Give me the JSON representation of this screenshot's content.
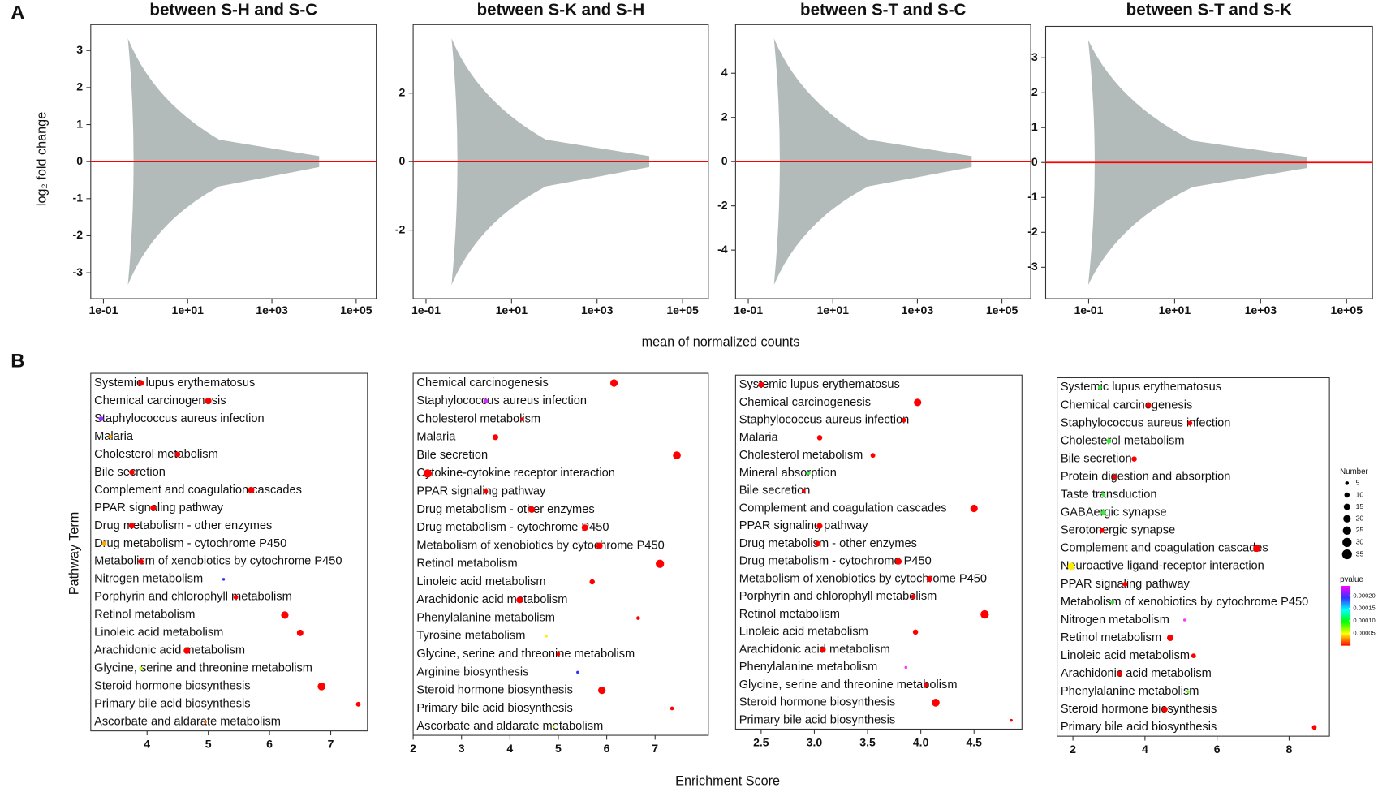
{
  "panel_labels": [
    "A",
    "B"
  ],
  "ma": {
    "xlabel": "mean of normalized counts",
    "ylabel": "log₂ fold change",
    "hline": 0,
    "xscale": "log",
    "panels": [
      {
        "title": "between S-H and S-C",
        "xlim": [
          0.05,
          300000
        ],
        "ylim": [
          -3.7,
          3.7
        ],
        "yticks": [
          -3,
          -2,
          -1,
          0,
          1,
          2,
          3
        ],
        "xticks": [
          {
            "value": 0.1,
            "label": "1e-01"
          },
          {
            "value": 10,
            "label": "1e+01"
          },
          {
            "value": 1000,
            "label": "1e+03"
          },
          {
            "value": 100000,
            "label": "1e+05"
          }
        ]
      },
      {
        "title": "between S-K and S-H",
        "xlim": [
          0.05,
          400000
        ],
        "ylim": [
          -4,
          4
        ],
        "yticks": [
          -2,
          0,
          2
        ],
        "xticks": [
          {
            "value": 0.1,
            "label": "1e-01"
          },
          {
            "value": 10,
            "label": "1e+01"
          },
          {
            "value": 1000,
            "label": "1e+03"
          },
          {
            "value": 100000,
            "label": "1e+05"
          }
        ]
      },
      {
        "title": "between S-T and S-C",
        "xlim": [
          0.05,
          480000
        ],
        "ylim": [
          -6.2,
          6.2
        ],
        "yticks": [
          -4,
          -2,
          0,
          2,
          4
        ],
        "xticks": [
          {
            "value": 0.1,
            "label": "1e-01"
          },
          {
            "value": 10,
            "label": "1e+01"
          },
          {
            "value": 1000,
            "label": "1e+03"
          },
          {
            "value": 100000,
            "label": "1e+05"
          }
        ]
      },
      {
        "title": "between S-T and S-K",
        "xlim": [
          0.01,
          400000
        ],
        "ylim": [
          -3.9,
          3.9
        ],
        "yticks": [
          -3,
          -2,
          -1,
          0,
          1,
          2,
          3
        ],
        "xticks": [
          {
            "value": 0.1,
            "label": "1e-01"
          },
          {
            "value": 10,
            "label": "1e+01"
          },
          {
            "value": 1000,
            "label": "1e+03"
          },
          {
            "value": 100000,
            "label": "1e+05"
          }
        ]
      }
    ]
  },
  "enrichment": {
    "xlabel": "Enrichment Score",
    "ylabel": "Pathway Term",
    "size_legend": {
      "title": "Number",
      "values": [
        5,
        10,
        15,
        20,
        25,
        30,
        35
      ]
    },
    "color_legend": {
      "title": "pvalue",
      "lim": [
        0,
        0.00024
      ],
      "ticks": [
        {
          "value": 0.0002,
          "label": "0.00020"
        },
        {
          "value": 0.00015,
          "label": "0.00015"
        },
        {
          "value": 0.0001,
          "label": "0.00010"
        },
        {
          "value": 5e-05,
          "label": "0.00005"
        }
      ],
      "gradient": [
        "#ff00ff",
        "#3333ff",
        "#00ffff",
        "#00ff00",
        "#ffff00",
        "#ff0000"
      ]
    },
    "panels": [
      {
        "xlim": [
          3.08,
          7.6
        ],
        "xticks": [
          4,
          5,
          6,
          7
        ],
        "categories": [
          "Systemic lupus erythematosus",
          "Chemical carcinogenesis",
          "Staphylococcus aureus infection",
          "Malaria",
          "Cholesterol metabolism",
          "Bile secretion",
          "Complement and coagulation cascades",
          "PPAR signaling pathway",
          "Drug metabolism - other enzymes",
          "Drug metabolism - cytochrome P450",
          "Metabolism of xenobiotics by cytochrome P450",
          "Nitrogen metabolism",
          "Porphyrin and chlorophyll metabolism",
          "Retinol metabolism",
          "Linoleic acid metabolism",
          "Arachidonic acid metabolism",
          "Glycine, serine and threonine metabolism",
          "Steroid hormone biosynthesis",
          "Primary bile acid biosynthesis",
          "Ascorbate and aldarate metabolism"
        ],
        "x": [
          3.9,
          5.0,
          3.25,
          3.4,
          4.5,
          3.75,
          5.7,
          4.1,
          3.75,
          3.3,
          3.9,
          5.25,
          5.45,
          6.25,
          6.5,
          4.65,
          3.9,
          6.85,
          7.45,
          4.95
        ],
        "size": [
          12,
          15,
          8,
          5,
          10,
          10,
          15,
          12,
          12,
          8,
          10,
          3,
          8,
          20,
          15,
          15,
          5,
          22,
          8,
          3
        ],
        "colors": [
          "#ff0000",
          "#ff0000",
          "#9933ff",
          "#ffaa00",
          "#ff0000",
          "#ff0000",
          "#ff0000",
          "#ff0000",
          "#ff0000",
          "#ffaa00",
          "#ff0000",
          "#3333ff",
          "#ff0000",
          "#ff0000",
          "#ff0000",
          "#ff0000",
          "#ccff33",
          "#ff0000",
          "#ff0000",
          "#ff6600"
        ]
      },
      {
        "xlim": [
          2,
          8.1
        ],
        "xticks": [
          2,
          3,
          4,
          5,
          6,
          7
        ],
        "categories": [
          "Chemical carcinogenesis",
          "Staphylococcus aureus infection",
          "Cholesterol metabolism",
          "Malaria",
          "Bile secretion",
          "Cytokine-cytokine receptor interaction",
          "PPAR signaling pathway",
          "Drug metabolism - other enzymes",
          "Drug metabolism - cytochrome P450",
          "Metabolism of xenobiotics by cytochrome P450",
          "Retinol metabolism",
          "Linoleic acid metabolism",
          "Arachidonic acid metabolism",
          "Phenylalanine metabolism",
          "Tyrosine metabolism",
          "Glycine, serine and threonine metabolism",
          "Arginine biosynthesis",
          "Steroid hormone biosynthesis",
          "Primary bile acid biosynthesis",
          "Ascorbate and aldarate metabolism"
        ],
        "x": [
          6.15,
          3.5,
          4.25,
          3.7,
          7.45,
          2.3,
          3.5,
          4.45,
          5.55,
          5.85,
          7.1,
          5.7,
          4.2,
          6.65,
          4.75,
          5.0,
          5.4,
          5.9,
          7.35,
          4.9
        ],
        "size": [
          20,
          8,
          5,
          12,
          22,
          25,
          8,
          15,
          15,
          15,
          25,
          10,
          15,
          5,
          3,
          5,
          3,
          20,
          5,
          3
        ],
        "colors": [
          "#ff0000",
          "#cc33ff",
          "#ff0000",
          "#ff0000",
          "#ff0000",
          "#ff0000",
          "#ff0000",
          "#ff0000",
          "#ff0000",
          "#ff0000",
          "#ff0000",
          "#ff0000",
          "#ff0000",
          "#ff0000",
          "#ffee00",
          "#ff0000",
          "#3333ff",
          "#ff0000",
          "#ff0000",
          "#ccff33"
        ]
      },
      {
        "xlim": [
          2.26,
          4.95
        ],
        "xticks": [
          2.5,
          {
            "value": 3,
            "label": "3.0"
          },
          3.5,
          {
            "value": 4,
            "label": "4.0"
          },
          4.5
        ],
        "categories": [
          "Systemic lupus erythematosus",
          "Chemical carcinogenesis",
          "Staphylococcus aureus infection",
          "Malaria",
          "Cholesterol metabolism",
          "Mineral absorption",
          "Bile secretion",
          "Complement and coagulation cascades",
          "PPAR signaling pathway",
          "Drug metabolism - other enzymes",
          "Drug metabolism - cytochrome P450",
          "Metabolism of xenobiotics by cytochrome P450",
          "Porphyrin and chlorophyll metabolism",
          "Retinol metabolism",
          "Linoleic acid metabolism",
          "Arachidonic acid metabolism",
          "Phenylalanine metabolism",
          "Glycine, serine and threonine metabolism",
          "Steroid hormone biosynthesis",
          "Primary bile acid biosynthesis"
        ],
        "x": [
          2.5,
          3.97,
          3.84,
          3.05,
          3.55,
          2.95,
          2.9,
          4.5,
          3.05,
          3.03,
          3.79,
          4.08,
          3.93,
          4.6,
          3.95,
          3.08,
          3.86,
          4.05,
          4.14,
          4.85
        ],
        "size": [
          12,
          20,
          8,
          10,
          8,
          3,
          5,
          20,
          12,
          12,
          15,
          12,
          8,
          25,
          10,
          12,
          3,
          8,
          22,
          3
        ],
        "colors": [
          "#ff0000",
          "#ff0000",
          "#ff0000",
          "#ff0000",
          "#ff0000",
          "#33ff33",
          "#ff0000",
          "#ff0000",
          "#ff0000",
          "#ff0000",
          "#ff0000",
          "#ff0000",
          "#ff0000",
          "#ff0000",
          "#ff0000",
          "#ff0000",
          "#ff33ff",
          "#ff0000",
          "#ff0000",
          "#ff0000"
        ]
      },
      {
        "xlim": [
          1.56,
          9.12
        ],
        "xticks": [
          2,
          4,
          6,
          8
        ],
        "categories": [
          "Systemic lupus erythematosus",
          "Chemical carcinogenesis",
          "Staphylococcus aureus infection",
          "Cholesterol metabolism",
          "Bile secretion",
          "Protein digestion and absorption",
          "Taste transduction",
          "GABAergic synapse",
          "Serotonergic synapse",
          "Complement and coagulation cascades",
          "Neuroactive ligand-receptor interaction",
          "PPAR signaling pathway",
          "Metabolism of xenobiotics by cytochrome P450",
          "Nitrogen metabolism",
          "Retinol metabolism",
          "Linoleic acid metabolism",
          "Arachidonic acid metabolism",
          "Phenylalanine metabolism",
          "Steroid hormone biosynthesis",
          "Primary bile acid biosynthesis"
        ],
        "x": [
          2.75,
          4.1,
          5.25,
          3.0,
          3.7,
          3.15,
          2.85,
          2.85,
          2.8,
          7.1,
          1.95,
          3.45,
          3.1,
          5.1,
          4.7,
          5.35,
          3.3,
          5.2,
          4.55,
          8.7
        ],
        "size": [
          5,
          10,
          8,
          8,
          10,
          8,
          5,
          8,
          8,
          18,
          18,
          8,
          5,
          3,
          15,
          8,
          10,
          3,
          12,
          8
        ],
        "colors": [
          "#33ee33",
          "#ff0000",
          "#ff0000",
          "#33ee33",
          "#ff0000",
          "#ff0000",
          "#33ee33",
          "#33ee33",
          "#ff0000",
          "#ff0000",
          "#ffee00",
          "#ff0000",
          "#33ee33",
          "#ff33ff",
          "#ff0000",
          "#ff0000",
          "#ff0000",
          "#66ff33",
          "#ff0000",
          "#ff0000"
        ]
      }
    ]
  }
}
